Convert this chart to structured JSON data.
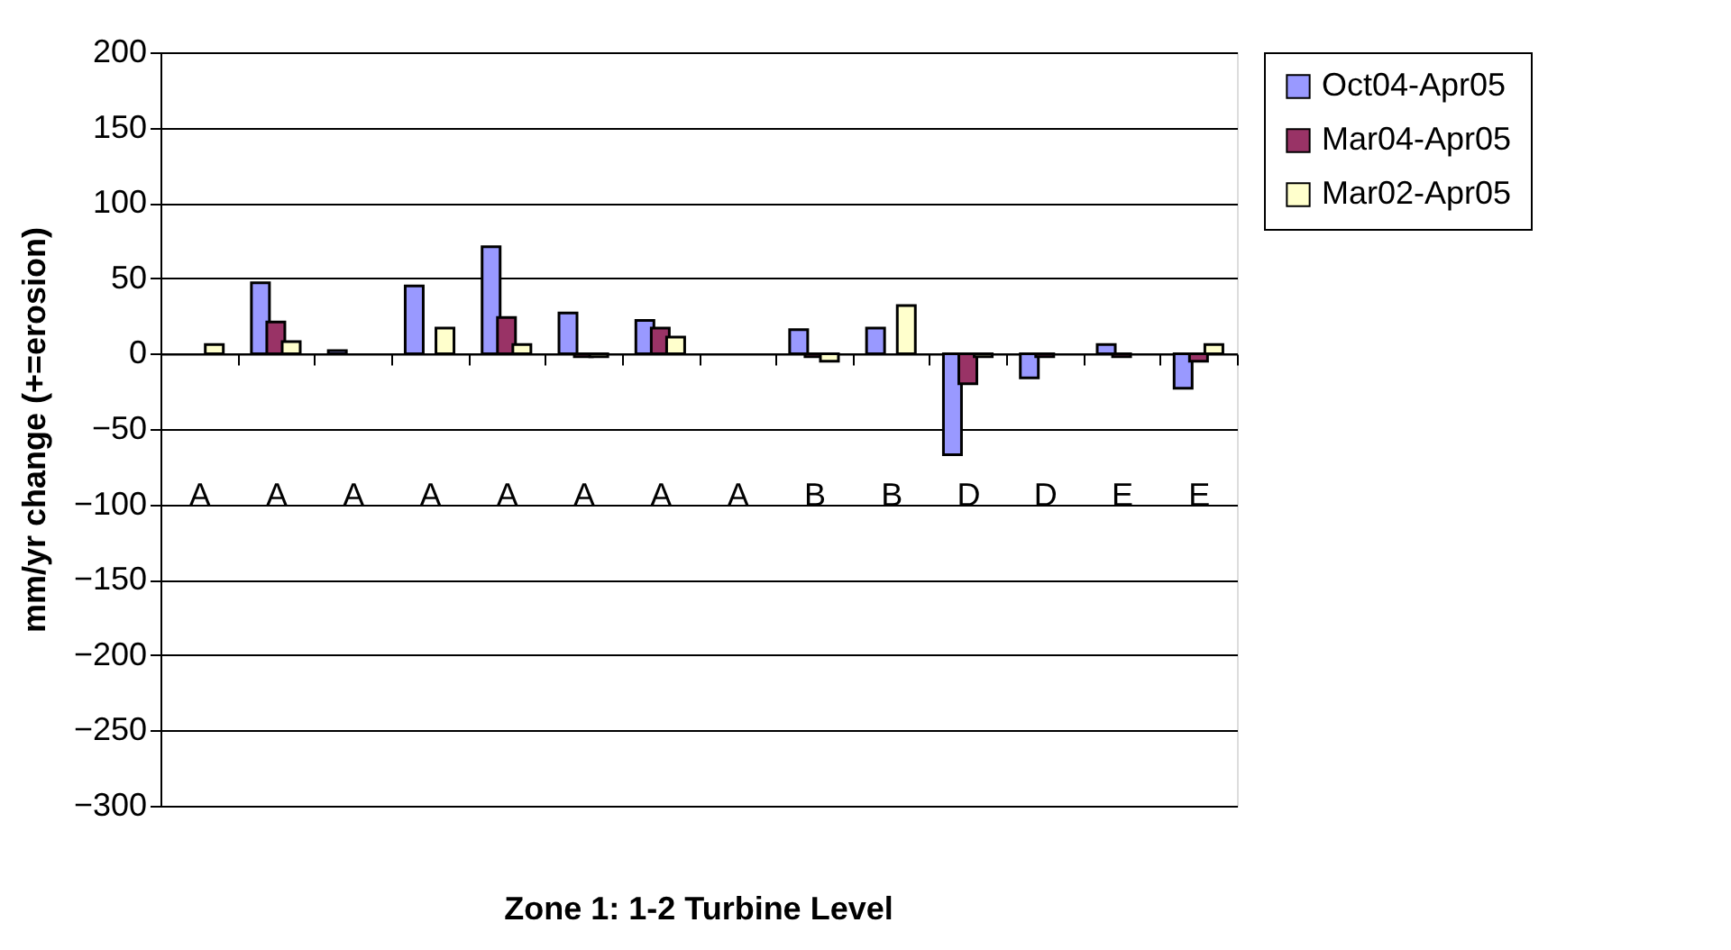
{
  "chart_data": {
    "type": "bar",
    "xlabel": "Zone 1: 1-2 Turbine Level",
    "ylabel": "mm/yr change (+=erosion)",
    "categories": [
      "A",
      "A",
      "A",
      "A",
      "A",
      "A",
      "A",
      "A",
      "B",
      "B",
      "D",
      "D",
      "E",
      "E"
    ],
    "series": [
      {
        "name": "Oct04-Apr05",
        "color": "#9999ff",
        "values": [
          null,
          47,
          2,
          45,
          71,
          27,
          22,
          null,
          16,
          17,
          -67,
          -16,
          6,
          -23
        ]
      },
      {
        "name": "Mar04-Apr05",
        "color": "#993366",
        "values": [
          null,
          21,
          null,
          null,
          24,
          -2,
          17,
          null,
          -2,
          null,
          -20,
          -2,
          -2,
          -5
        ]
      },
      {
        "name": "Mar02-Apr05",
        "color": "#ffffcc",
        "values": [
          6,
          8,
          null,
          17,
          6,
          -2,
          11,
          null,
          -5,
          32,
          -2,
          null,
          null,
          6
        ]
      }
    ],
    "ylim": [
      -300,
      200
    ],
    "yticks": [
      -300,
      -250,
      -200,
      -150,
      -100,
      -50,
      0,
      50,
      100,
      150,
      200
    ],
    "grid": "y",
    "legend": "right"
  }
}
